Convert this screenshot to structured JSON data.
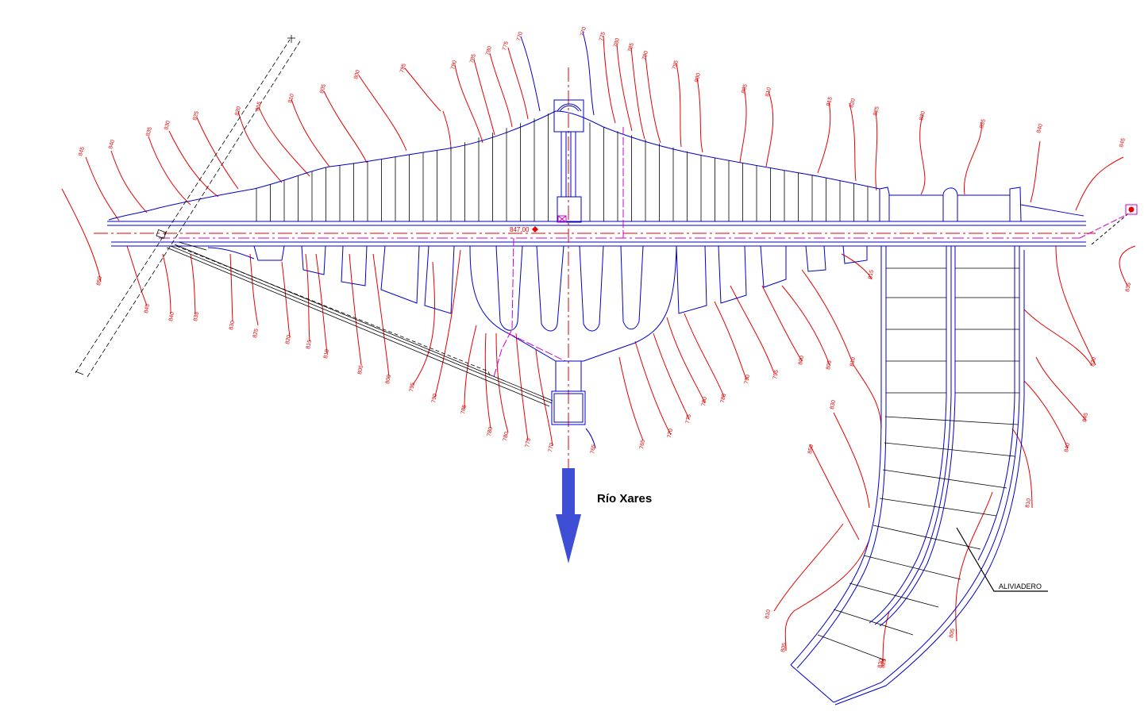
{
  "labels": {
    "river": "Río Xares",
    "spillway": "ALIVIADERO",
    "crest_elevation": "847,00"
  },
  "colors": {
    "contour": "#e60000",
    "structure": "#0000cc",
    "axis": "#cc00cc",
    "arrow": "#3e4fd6"
  },
  "contours_upstream": [
    "845",
    "840",
    "835",
    "830",
    "825",
    "820",
    "815",
    "810",
    "805",
    "800",
    "795",
    "790",
    "785",
    "780",
    "775",
    "770",
    "770",
    "775",
    "780",
    "785",
    "790",
    "795",
    "800",
    "805",
    "810",
    "815",
    "820",
    "825",
    "830",
    "835",
    "840",
    "845"
  ],
  "contours_downstream": [
    "850",
    "845",
    "840",
    "835",
    "830",
    "825",
    "820",
    "815",
    "810",
    "805",
    "800",
    "795",
    "790",
    "785",
    "780",
    "780",
    "775",
    "770",
    "765",
    "765",
    "770",
    "775",
    "780",
    "785",
    "790",
    "795",
    "800",
    "805",
    "810",
    "815",
    "820",
    "845",
    "840",
    "835",
    "830",
    "850",
    "810",
    "805",
    "805",
    "810",
    "825",
    "830"
  ]
}
